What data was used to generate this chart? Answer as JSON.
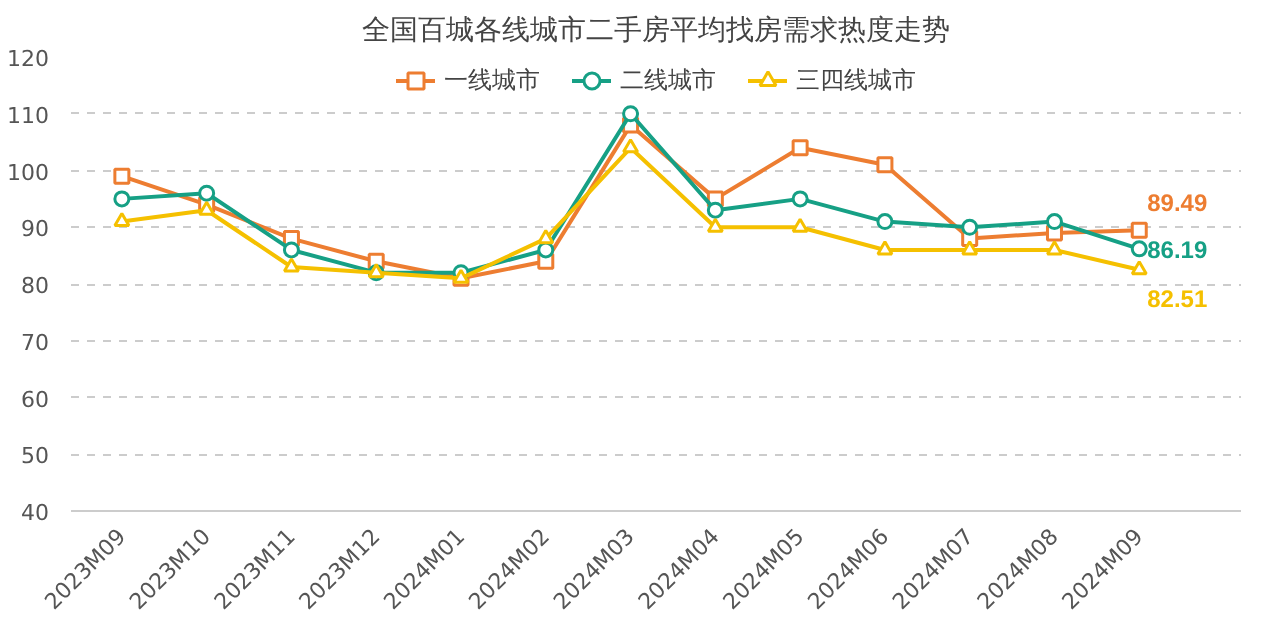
{
  "chart_data": {
    "type": "line",
    "title": "全国百城各线城市二手房平均找房需求热度走势",
    "categories": [
      "2023M09",
      "2023M10",
      "2023M11",
      "2023M12",
      "2024M01",
      "2024M02",
      "2024M03",
      "2024M04",
      "2024M05",
      "2024M06",
      "2024M07",
      "2024M08",
      "2024M09"
    ],
    "series": [
      {
        "name": "一线城市",
        "color": "#ed7d31",
        "marker": "square",
        "values": [
          99,
          94,
          88,
          84,
          81,
          84,
          108,
          95,
          104,
          101,
          88,
          89,
          89.49
        ],
        "value_labels": [
          null,
          null,
          null,
          null,
          null,
          null,
          null,
          null,
          null,
          null,
          null,
          null,
          "89.49"
        ]
      },
      {
        "name": "二线城市",
        "color": "#16a085",
        "marker": "circle",
        "values": [
          95,
          96,
          86,
          82,
          82,
          86,
          110,
          93,
          95,
          91,
          90,
          91,
          86.19
        ],
        "value_labels": [
          null,
          null,
          null,
          null,
          null,
          null,
          null,
          null,
          null,
          null,
          null,
          null,
          "86.19"
        ]
      },
      {
        "name": "三四线城市",
        "color": "#f5c000",
        "marker": "triangle",
        "values": [
          91,
          93,
          83,
          82,
          81,
          88,
          104,
          90,
          90,
          86,
          86,
          86,
          82.51
        ],
        "value_labels": [
          null,
          null,
          null,
          null,
          null,
          null,
          null,
          null,
          null,
          null,
          null,
          null,
          "82.51"
        ]
      }
    ],
    "ylim": [
      40,
      120
    ],
    "yticks": [
      40,
      50,
      60,
      70,
      80,
      90,
      100,
      110,
      120
    ],
    "grid": "y",
    "legend": "top"
  }
}
